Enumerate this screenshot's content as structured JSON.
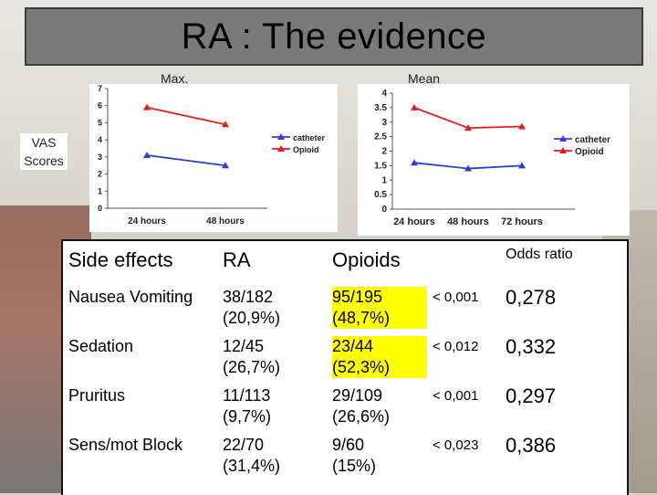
{
  "title": "RA : The evidence",
  "charts": {
    "vas_label": [
      "VAS",
      "Scores"
    ],
    "chart_data": [
      {
        "type": "line",
        "title": "Max.",
        "categories": [
          "24 hours",
          "48 hours"
        ],
        "series": [
          {
            "name": "catheter",
            "values": [
              3.1,
              2.5
            ],
            "color": "#2b3fd4"
          },
          {
            "name": "Opioid",
            "values": [
              5.9,
              4.9
            ],
            "color": "#e31e1e"
          }
        ],
        "ylim": [
          0,
          7
        ],
        "yticks": [
          "0",
          "1",
          "2",
          "3",
          "4",
          "5",
          "6",
          "7"
        ]
      },
      {
        "type": "line",
        "title": "Mean",
        "categories": [
          "24 hours",
          "48 hours",
          "72 hours"
        ],
        "series": [
          {
            "name": "catheter",
            "values": [
              1.6,
              1.4,
              1.5
            ],
            "color": "#2b3fd4"
          },
          {
            "name": "Opioid",
            "values": [
              3.5,
              2.8,
              2.85
            ],
            "color": "#e31e1e"
          }
        ],
        "ylim": [
          0,
          4
        ],
        "yticks": [
          "0",
          "0.5",
          "1",
          "1.5",
          "2",
          "2.5",
          "3",
          "3.5",
          "4"
        ]
      }
    ]
  },
  "table": {
    "headers": {
      "effects": "Side effects",
      "ra": "RA",
      "opioids": "Opioids",
      "odds": "Odds ratio"
    },
    "rows": [
      {
        "effect": "Nausea Vomiting",
        "ra1": "38/182",
        "ra2": "(20,9%)",
        "op1": "95/195",
        "op2": "(48,7%)",
        "p": "< 0,001",
        "or": "0,278",
        "highlight": true
      },
      {
        "effect": "Sedation",
        "ra1": "12/45",
        "ra2": "(26,7%)",
        "op1": "23/44",
        "op2": "(52,3%)",
        "p": "< 0,012",
        "or": "0,332",
        "highlight": true
      },
      {
        "effect": "Pruritus",
        "ra1": "11/113",
        "ra2": "(9,7%)",
        "op1": "29/109",
        "op2": "(26,6%)",
        "p": "< 0,001",
        "or": "0,297",
        "highlight": false
      },
      {
        "effect": "Sens/mot Block",
        "ra1": "22/70",
        "ra2": "(31,4%)",
        "op1": "9/60",
        "op2": "(15%)",
        "p": "< 0,023",
        "or": "0,386",
        "highlight": false
      }
    ]
  }
}
